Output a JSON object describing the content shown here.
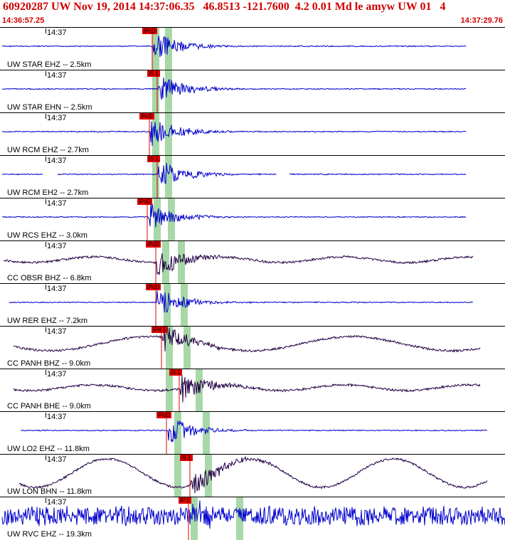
{
  "header": {
    "title": "60920287 UW Nov 19, 2014 14:37:06.35   46.8513 -121.7600  4.2 0.01 Md le amyw UW 01   4",
    "start_time": "14:36:57.25",
    "end_time": "14:37:29.76"
  },
  "colors": {
    "header_text": "#d00000",
    "trace_blue": "#0000cc",
    "trace_dark": "#220044",
    "pick_red": "#e00000",
    "window_green": "#a8d8a8"
  },
  "traces": [
    {
      "time_label": "14:37",
      "station_label": "UW STAR EHZ -- 2.5km",
      "pick_label": "iPcD",
      "color": "blue",
      "amp": "low",
      "gap": false
    },
    {
      "time_label": "14:37",
      "station_label": "UW STAR EHN -- 2.5km",
      "pick_label": "iS 1",
      "color": "blue",
      "amp": "low",
      "gap": false
    },
    {
      "time_label": "14:37",
      "station_label": "UW RCM EHZ -- 2.7km",
      "pick_label": "iPcD",
      "color": "blue",
      "amp": "low",
      "gap": false
    },
    {
      "time_label": "14:37",
      "station_label": "UW RCM EH2 -- 2.7km",
      "pick_label": "iS 1",
      "color": "blue",
      "amp": "low",
      "gap": true
    },
    {
      "time_label": "14:37",
      "station_label": "UW RCS EHZ -- 3.0km",
      "pick_label": "iPcD",
      "color": "blue",
      "amp": "low",
      "gap": false
    },
    {
      "time_label": "14:37",
      "station_label": "CC OBSR BHZ -- 6.8km",
      "pick_label": "iPcD",
      "color": "dark",
      "amp": "wave",
      "gap": false
    },
    {
      "time_label": "14:37",
      "station_label": "UW RER EHZ -- 7.2km",
      "pick_label": "iPcD",
      "color": "blue",
      "amp": "low",
      "gap": false
    },
    {
      "time_label": "14:37",
      "station_label": "CC PANH BHZ -- 9.0km",
      "pick_label": "iPd 1",
      "color": "dark",
      "amp": "drift",
      "gap": false
    },
    {
      "time_label": "14:37",
      "station_label": "CC PANH BHE -- 9.0km",
      "pick_label": "iS 1",
      "color": "dark",
      "amp": "wave",
      "gap": false
    },
    {
      "time_label": "14:37",
      "station_label": "UW LO2 EHZ -- 11.8km",
      "pick_label": "iPcD",
      "color": "blue",
      "amp": "low",
      "gap": false
    },
    {
      "time_label": "14:37",
      "station_label": "UW LON BHN -- 11.8km",
      "pick_label": "iS 1",
      "color": "dark",
      "amp": "sine",
      "gap": false
    },
    {
      "time_label": "14:37",
      "station_label": "UW RVC EHZ -- 19.3km",
      "pick_label": "iP 1",
      "color": "blue",
      "amp": "noise",
      "gap": false
    }
  ]
}
